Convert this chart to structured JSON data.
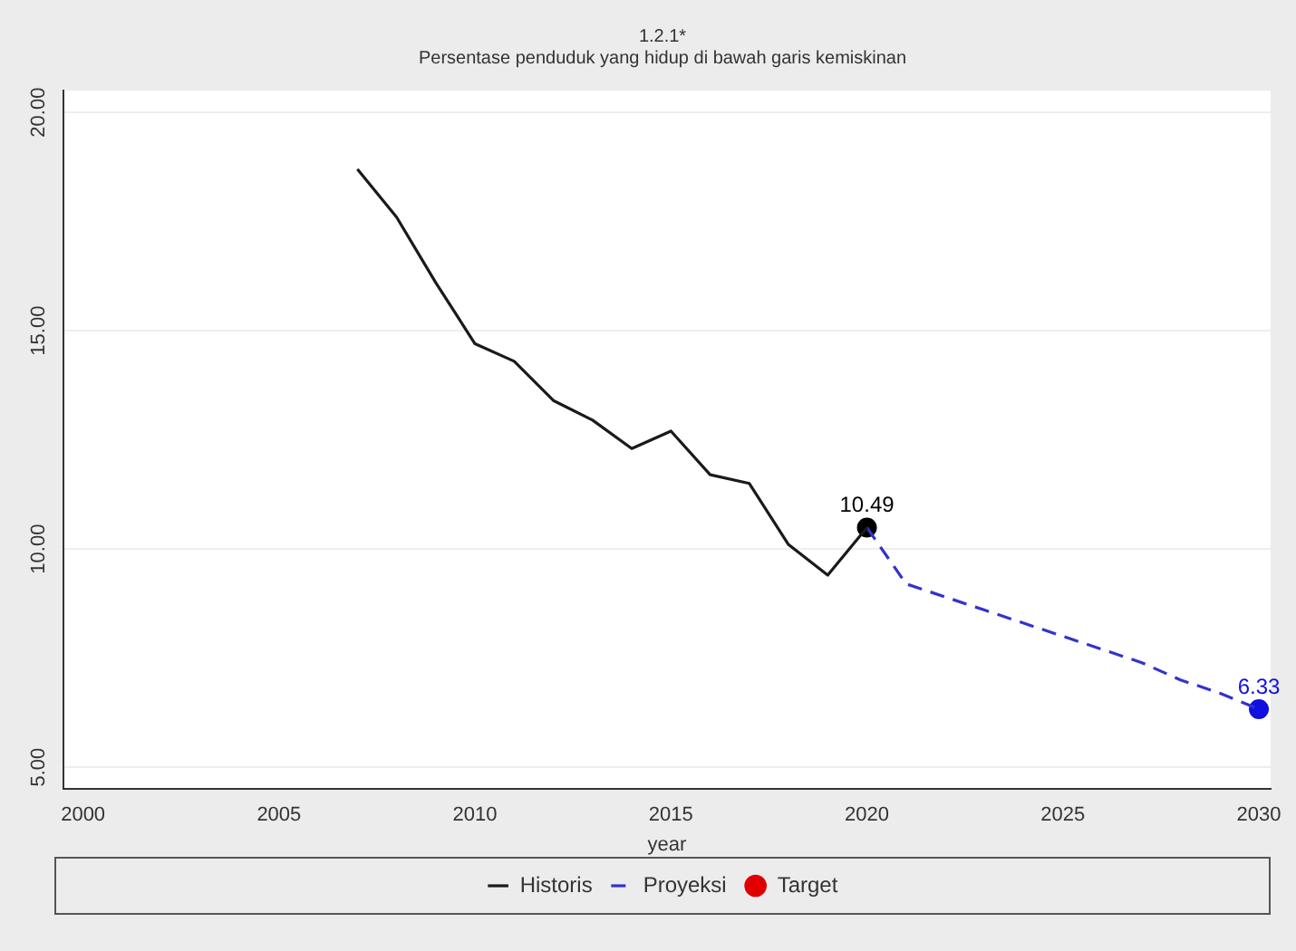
{
  "chart_data": {
    "type": "line",
    "title": "1.2.1*",
    "subtitle": "Persentase penduduk yang hidup di bawah garis kemiskinan",
    "xlabel": "year",
    "xlim": [
      1999.5,
      2030.3
    ],
    "xticks": [
      2000,
      2005,
      2010,
      2015,
      2020,
      2025,
      2030
    ],
    "ylim": [
      4.5,
      20.5
    ],
    "yticks": [
      {
        "value": 5,
        "label": "5.00"
      },
      {
        "value": 10,
        "label": "10.00"
      },
      {
        "value": 15,
        "label": "15.00"
      },
      {
        "value": 20,
        "label": "20.00"
      }
    ],
    "grid": "y",
    "legend": "bottom",
    "marker": "none",
    "series": [
      {
        "name": "Historis",
        "color": "#1a1a1a",
        "line_style": "solid",
        "x": [
          2007,
          2008,
          2009,
          2010,
          2011,
          2012,
          2013,
          2014,
          2015,
          2016,
          2017,
          2018,
          2019,
          2020
        ],
        "values": [
          18.7,
          17.6,
          16.1,
          14.7,
          14.3,
          13.4,
          12.95,
          12.3,
          12.7,
          11.7,
          11.5,
          10.1,
          9.4,
          10.49
        ]
      },
      {
        "name": "Proyeksi",
        "color": "#3333cc",
        "line_style": "dashed",
        "x": [
          2020,
          2021,
          2022,
          2023,
          2024,
          2025,
          2026,
          2027,
          2028,
          2029,
          2030
        ],
        "values": [
          10.49,
          9.2,
          8.9,
          8.6,
          8.3,
          8.0,
          7.7,
          7.4,
          7.0,
          6.7,
          6.33
        ]
      },
      {
        "name": "Target",
        "type": "scatter",
        "marker": "circle",
        "color": "#e00000"
      },
      {
        "type": "scatter",
        "marker": "circle",
        "color": "#000000",
        "x": [
          2020
        ],
        "values": [
          10.49
        ],
        "value_labels": [
          "10.49"
        ]
      },
      {
        "type": "scatter",
        "marker": "circle",
        "color": "#1010e0",
        "x": [
          2030
        ],
        "values": [
          6.33
        ],
        "value_labels": [
          "6.33"
        ]
      }
    ]
  }
}
